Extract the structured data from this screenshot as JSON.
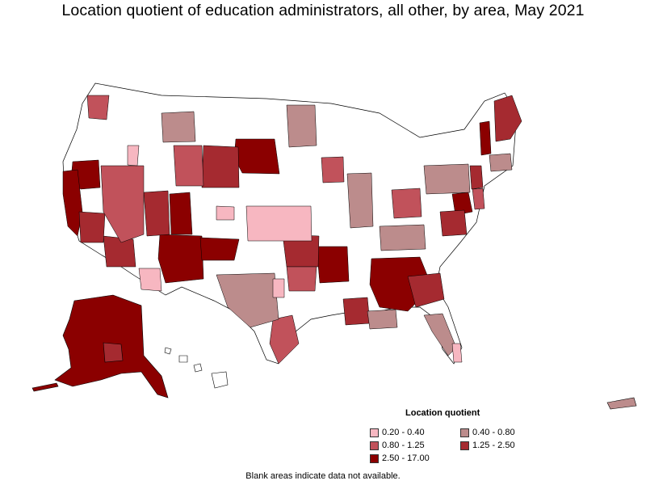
{
  "title": "Location quotient of education administrators, all other, by area, May 2021",
  "legend": {
    "title": "Location quotient",
    "items": [
      {
        "label": "0.20 - 0.40",
        "color": "#f7b7c1"
      },
      {
        "label": "0.40 - 0.80",
        "color": "#bc8c8c"
      },
      {
        "label": "0.80 - 1.25",
        "color": "#c1525b"
      },
      {
        "label": "1.25 - 2.50",
        "color": "#a52a30"
      },
      {
        "label": "2.50 - 17.00",
        "color": "#8b0000"
      }
    ]
  },
  "footnote": "Blank areas indicate data not available.",
  "colors": {
    "no_data": "#ffffff",
    "border": "#000000"
  }
}
